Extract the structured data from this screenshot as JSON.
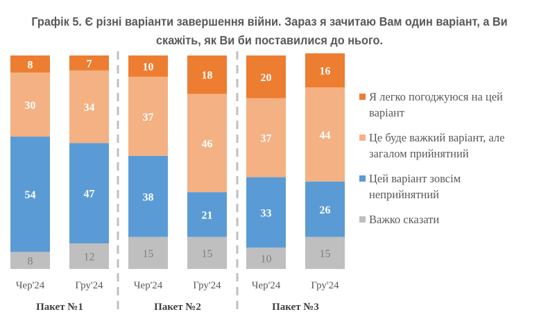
{
  "chart_data": {
    "type": "bar",
    "stacked": true,
    "title": "Графік 5. Є різні варіанти завершення війни. Зараз я зачитаю Вам один варіант, а Ви скажіть, як Ви би поставилися до нього.",
    "title_lines": [
      "Графік 5. Є різні варіанти завершення війни. Зараз я зачитаю Вам один варіант, а Ви",
      "скажіть, як Ви би поставилися до нього."
    ],
    "xlabel": "",
    "ylabel": "",
    "ylim": [
      0,
      100
    ],
    "grid": false,
    "legend_position": "right",
    "groups": [
      {
        "label": "Пакет №1",
        "categories": [
          "Чер'24",
          "Гру'24"
        ]
      },
      {
        "label": "Пакет №2",
        "categories": [
          "Чер'24",
          "Гру'24"
        ]
      },
      {
        "label": "Пакет №3",
        "categories": [
          "Чер'24",
          "Гру'24"
        ]
      }
    ],
    "categories": [
      "Чер'24",
      "Гру'24",
      "Чер'24",
      "Гру'24",
      "Чер'24",
      "Гру'24"
    ],
    "series": [
      {
        "name": "Важко сказати",
        "color": "#bfbfbf",
        "label_color": "#7f7f7f",
        "values": [
          8,
          12,
          15,
          15,
          10,
          15
        ]
      },
      {
        "name": "Цей варіант зовсім неприйнятний",
        "color": "#5b9bd5",
        "label_color": "#ffffff",
        "values": [
          54,
          47,
          38,
          21,
          33,
          26
        ]
      },
      {
        "name": "Це буде важкий варіант, але загалом прийнятний",
        "color": "#f4b183",
        "label_color": "#ffffff",
        "values": [
          30,
          34,
          37,
          46,
          37,
          44
        ]
      },
      {
        "name": "Я легко погоджуюся на цей варіант",
        "color": "#ed7d31",
        "label_color": "#ffffff",
        "values": [
          8,
          7,
          10,
          18,
          20,
          16
        ]
      }
    ],
    "legend": [
      {
        "lines": [
          "Я легко погоджуюся на цей",
          "варіант"
        ],
        "color": "#ed7d31"
      },
      {
        "lines": [
          "Це буде важкий варіант, але",
          "загалом прийнятний"
        ],
        "color": "#f4b183"
      },
      {
        "lines": [
          "Цей варіант зовсім",
          "неприйнятний"
        ],
        "color": "#5b9bd5"
      },
      {
        "lines": [
          "Важко сказати"
        ],
        "color": "#bfbfbf"
      }
    ]
  }
}
